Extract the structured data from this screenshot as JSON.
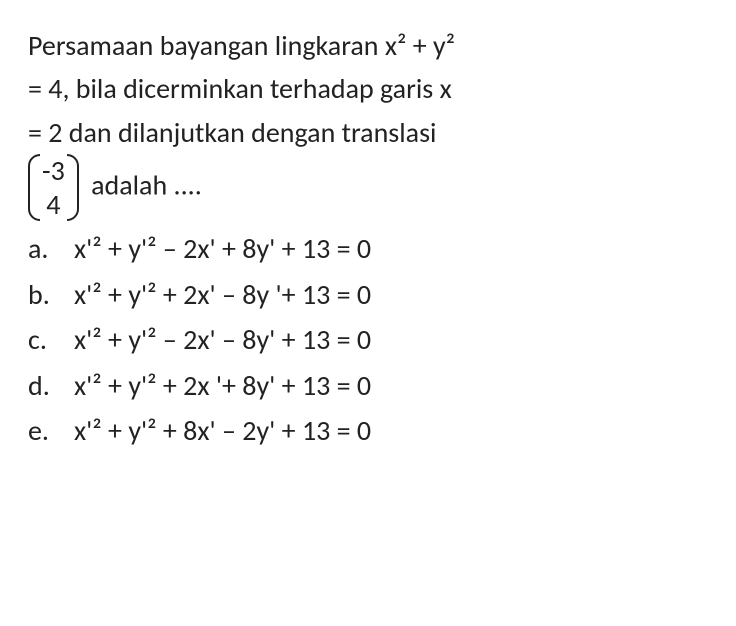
{
  "question": {
    "line1_pre": "Persamaan bayangan lingkaran ",
    "line1_eq": "x² + y²",
    "line2": "= 4, bila dicerminkan terhadap garis x",
    "line3": "= 2 dan dilanjutkan dengan translasi",
    "matrix_top": "-3",
    "matrix_bot": "4",
    "after_matrix": " adalah ...."
  },
  "options": [
    {
      "letter": "a.",
      "expr": "x'² + y'² – 2x' + 8y' + 13 = 0"
    },
    {
      "letter": "b.",
      "expr": "x'² + y'² + 2x' – 8y '+ 13 = 0"
    },
    {
      "letter": "c.",
      "expr": "x'² + y'² – 2x' – 8y' + 13 = 0"
    },
    {
      "letter": "d.",
      "expr": "x'² + y'² + 2x '+ 8y' + 13 = 0"
    },
    {
      "letter": "e.",
      "expr": "x'² + y'² + 8x' – 2y' + 13 = 0"
    }
  ],
  "style": {
    "font_size_pt": 28,
    "text_color": "#222222",
    "background_color": "#ffffff"
  }
}
